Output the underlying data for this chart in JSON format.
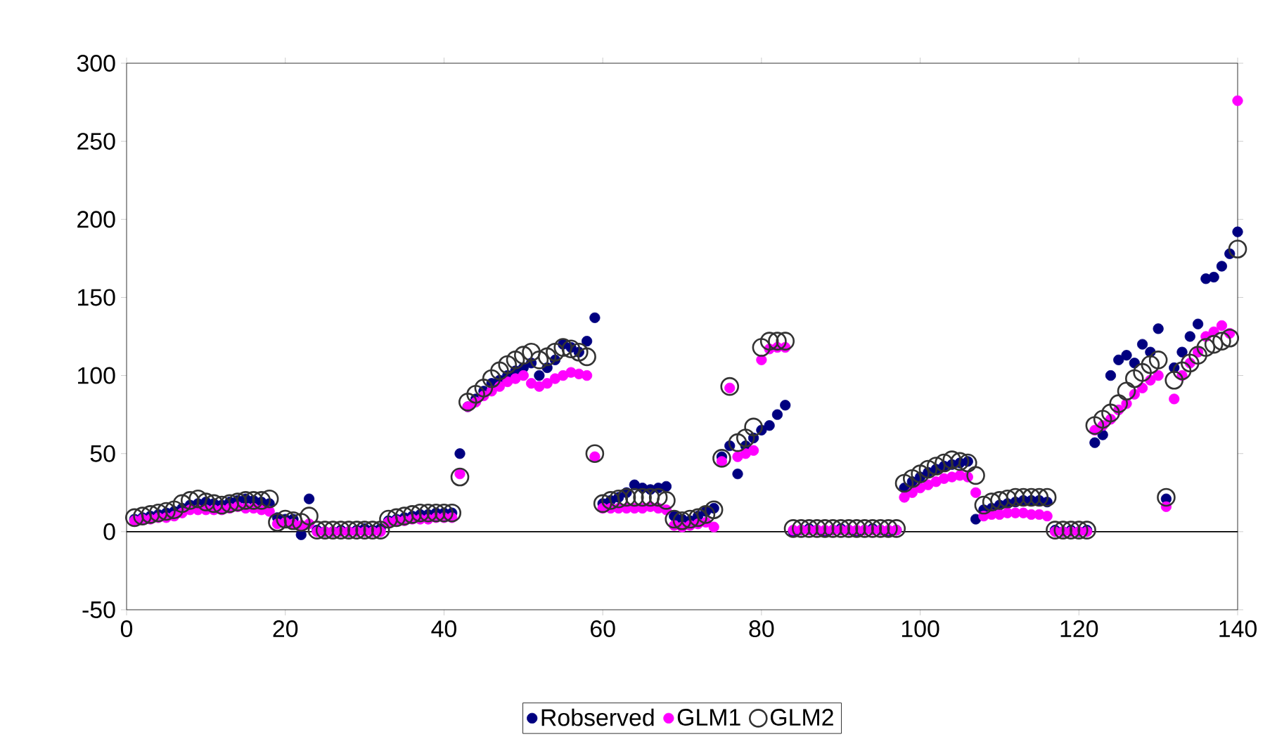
{
  "chart_data": {
    "type": "scatter",
    "x": [
      1,
      2,
      3,
      4,
      5,
      6,
      7,
      8,
      9,
      10,
      11,
      12,
      13,
      14,
      15,
      16,
      17,
      18,
      19,
      20,
      21,
      22,
      23,
      24,
      25,
      26,
      27,
      28,
      29,
      30,
      31,
      32,
      33,
      34,
      35,
      36,
      37,
      38,
      39,
      40,
      41,
      42,
      43,
      44,
      45,
      46,
      47,
      48,
      49,
      50,
      51,
      52,
      53,
      54,
      55,
      56,
      57,
      58,
      59,
      60,
      61,
      62,
      63,
      64,
      65,
      66,
      67,
      68,
      69,
      70,
      71,
      72,
      73,
      74,
      75,
      76,
      77,
      78,
      79,
      80,
      81,
      82,
      83,
      84,
      85,
      86,
      87,
      88,
      89,
      90,
      91,
      92,
      93,
      94,
      95,
      96,
      97,
      98,
      99,
      100,
      101,
      102,
      103,
      104,
      105,
      106,
      107,
      108,
      109,
      110,
      111,
      112,
      113,
      114,
      115,
      116,
      117,
      118,
      119,
      120,
      121,
      122,
      123,
      124,
      125,
      126,
      127,
      128,
      129,
      130,
      131,
      132,
      133,
      134,
      135,
      136,
      137,
      138,
      139,
      140
    ],
    "series": [
      {
        "name": "Robserved",
        "color": "#000080",
        "values": [
          8,
          9,
          10,
          11,
          12,
          13,
          15,
          17,
          18,
          19,
          18,
          17,
          19,
          20,
          21,
          20,
          19,
          18,
          9,
          8,
          8,
          -2,
          21,
          1,
          0,
          0,
          1,
          0,
          1,
          2,
          1,
          2,
          7,
          8,
          9,
          10,
          11,
          11,
          12,
          12,
          12,
          50,
          80,
          85,
          90,
          95,
          97,
          100,
          103,
          105,
          108,
          100,
          105,
          110,
          120,
          118,
          115,
          122,
          137,
          18,
          20,
          22,
          25,
          30,
          28,
          27,
          28,
          29,
          10,
          8,
          7,
          10,
          13,
          15,
          48,
          55,
          37,
          55,
          60,
          65,
          68,
          75,
          81,
          0,
          1,
          2,
          1,
          0,
          1,
          2,
          1,
          0,
          1,
          2,
          1,
          0,
          1,
          28,
          32,
          35,
          38,
          40,
          42,
          43,
          44,
          45,
          8,
          14,
          15,
          17,
          18,
          19,
          20,
          20,
          20,
          19,
          1,
          0,
          1,
          0,
          1,
          57,
          62,
          100,
          110,
          113,
          108,
          120,
          115,
          130,
          21,
          105,
          115,
          125,
          133,
          162,
          163,
          170,
          178,
          192
        ]
      },
      {
        "name": "GLM1",
        "color": "#ff00ff",
        "values": [
          7,
          8,
          8,
          9,
          9,
          10,
          12,
          14,
          14,
          14,
          14,
          14,
          15,
          16,
          15,
          15,
          14,
          13,
          5,
          6,
          5,
          4,
          5,
          0,
          0,
          0,
          0,
          0,
          0,
          0,
          0,
          0,
          6,
          7,
          7,
          8,
          8,
          8,
          9,
          9,
          9,
          37,
          80,
          83,
          87,
          90,
          93,
          96,
          98,
          100,
          95,
          93,
          95,
          98,
          100,
          102,
          101,
          100,
          48,
          15,
          15,
          15,
          15,
          15,
          15,
          16,
          15,
          14,
          4,
          3,
          4,
          5,
          6,
          3,
          45,
          92,
          48,
          50,
          52,
          110,
          117,
          118,
          118,
          1,
          1,
          1,
          1,
          1,
          1,
          1,
          1,
          1,
          1,
          1,
          1,
          1,
          1,
          22,
          25,
          28,
          30,
          32,
          34,
          35,
          36,
          35,
          25,
          10,
          11,
          11,
          12,
          12,
          12,
          11,
          11,
          10,
          0,
          0,
          0,
          0,
          0,
          65,
          68,
          72,
          78,
          82,
          88,
          92,
          97,
          100,
          16,
          85,
          100,
          108,
          115,
          125,
          128,
          132,
          127,
          276
        ]
      },
      {
        "name": "GLM2",
        "color": "#333333",
        "marker": "circle",
        "values": [
          9,
          10,
          11,
          12,
          13,
          14,
          18,
          20,
          21,
          19,
          18,
          17,
          18,
          19,
          20,
          20,
          20,
          21,
          6,
          8,
          7,
          6,
          10,
          1,
          1,
          1,
          1,
          1,
          1,
          1,
          1,
          1,
          8,
          9,
          10,
          11,
          12,
          12,
          12,
          12,
          12,
          35,
          83,
          88,
          92,
          98,
          103,
          107,
          110,
          113,
          115,
          110,
          112,
          115,
          118,
          117,
          115,
          112,
          50,
          18,
          20,
          21,
          22,
          22,
          22,
          22,
          22,
          20,
          8,
          7,
          8,
          9,
          11,
          14,
          47,
          93,
          57,
          60,
          67,
          118,
          122,
          122,
          122,
          2,
          2,
          2,
          2,
          2,
          2,
          2,
          2,
          2,
          2,
          2,
          2,
          2,
          2,
          31,
          34,
          37,
          40,
          42,
          44,
          46,
          45,
          44,
          36,
          17,
          19,
          20,
          21,
          22,
          22,
          22,
          22,
          22,
          1,
          1,
          1,
          1,
          1,
          68,
          72,
          76,
          82,
          90,
          98,
          102,
          107,
          110,
          22,
          97,
          103,
          108,
          113,
          118,
          120,
          122,
          124,
          181
        ]
      }
    ],
    "xlim": [
      0,
      140
    ],
    "ylim": [
      -50,
      300
    ],
    "xticks": [
      0,
      20,
      40,
      60,
      80,
      100,
      120,
      140
    ],
    "yticks": [
      -50,
      0,
      50,
      100,
      150,
      200,
      250,
      300
    ],
    "ref_lines": [
      {
        "axis": "y",
        "value": 0,
        "color": "#000000"
      }
    ],
    "marker": "circle",
    "legend": "bottom"
  }
}
